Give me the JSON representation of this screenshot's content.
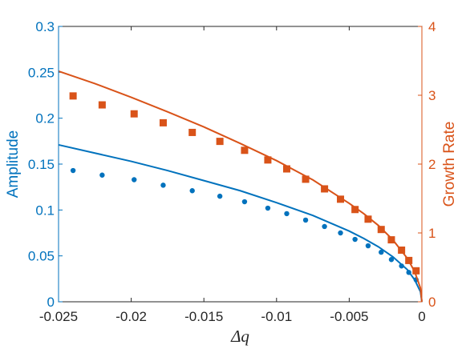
{
  "chart_data": {
    "type": "scatter",
    "xlabel": "Δq",
    "ylabel_left": "Amplitude",
    "ylabel_right": "Growth Rate",
    "xlim": [
      -0.025,
      0
    ],
    "ylim_left": [
      0,
      0.3
    ],
    "ylim_right": [
      0,
      4
    ],
    "x_ticks": [
      -0.025,
      -0.02,
      -0.015,
      -0.01,
      -0.005,
      0
    ],
    "x_tick_labels": [
      "-0.025",
      "-0.02",
      "-0.015",
      "-0.01",
      "-0.005",
      "0"
    ],
    "left_ticks": [
      0,
      0.05,
      0.1,
      0.15,
      0.2,
      0.25,
      0.3
    ],
    "left_tick_labels": [
      "0",
      "0.05",
      "0.1",
      "0.15",
      "0.2",
      "0.25",
      "0.3"
    ],
    "right_ticks": [
      0,
      1,
      2,
      3,
      4
    ],
    "right_tick_labels": [
      "0",
      "1",
      "2",
      "3",
      "4"
    ],
    "colors": {
      "left": "#0072BD",
      "right": "#D95319"
    },
    "series": [
      {
        "axis": "left",
        "style": "markers-circle",
        "x": [
          -0.024,
          -0.022,
          -0.0198,
          -0.0178,
          -0.0158,
          -0.0139,
          -0.0122,
          -0.0106,
          -0.0093,
          -0.008,
          -0.0067,
          -0.0056,
          -0.0046,
          -0.0037,
          -0.0028,
          -0.0021,
          -0.0014,
          -0.0009,
          -0.0004
        ],
        "y": [
          0.143,
          0.138,
          0.133,
          0.127,
          0.121,
          0.115,
          0.109,
          0.102,
          0.096,
          0.089,
          0.082,
          0.075,
          0.068,
          0.061,
          0.054,
          0.046,
          0.039,
          0.032,
          0.024
        ]
      },
      {
        "axis": "left",
        "style": "line",
        "x": [
          -0.025,
          -0.0225,
          -0.02,
          -0.0175,
          -0.015,
          -0.0125,
          -0.01,
          -0.0075,
          -0.005,
          -0.004,
          -0.003,
          -0.002,
          -0.001,
          -0.0005,
          -0.0001,
          0
        ],
        "y": [
          0.171,
          0.162,
          0.153,
          0.143,
          0.132,
          0.121,
          0.108,
          0.094,
          0.077,
          0.069,
          0.06,
          0.049,
          0.035,
          0.024,
          0.011,
          0.0
        ]
      },
      {
        "axis": "right",
        "style": "markers-square",
        "x": [
          -0.024,
          -0.022,
          -0.0198,
          -0.0178,
          -0.0158,
          -0.0139,
          -0.0122,
          -0.0106,
          -0.0093,
          -0.008,
          -0.0067,
          -0.0056,
          -0.0046,
          -0.0037,
          -0.0028,
          -0.0021,
          -0.0014,
          -0.0009,
          -0.0004
        ],
        "y": [
          2.99,
          2.86,
          2.73,
          2.6,
          2.46,
          2.33,
          2.2,
          2.06,
          1.93,
          1.78,
          1.64,
          1.49,
          1.34,
          1.2,
          1.05,
          0.9,
          0.75,
          0.6,
          0.45
        ]
      },
      {
        "axis": "right",
        "style": "line",
        "x": [
          -0.025,
          -0.0225,
          -0.02,
          -0.0175,
          -0.015,
          -0.0125,
          -0.01,
          -0.0075,
          -0.005,
          -0.004,
          -0.003,
          -0.002,
          -0.001,
          -0.0005,
          -0.0001,
          0
        ],
        "y": [
          3.35,
          3.17,
          2.97,
          2.76,
          2.54,
          2.3,
          2.05,
          1.77,
          1.43,
          1.28,
          1.11,
          0.9,
          0.63,
          0.44,
          0.2,
          0.0
        ]
      }
    ]
  }
}
